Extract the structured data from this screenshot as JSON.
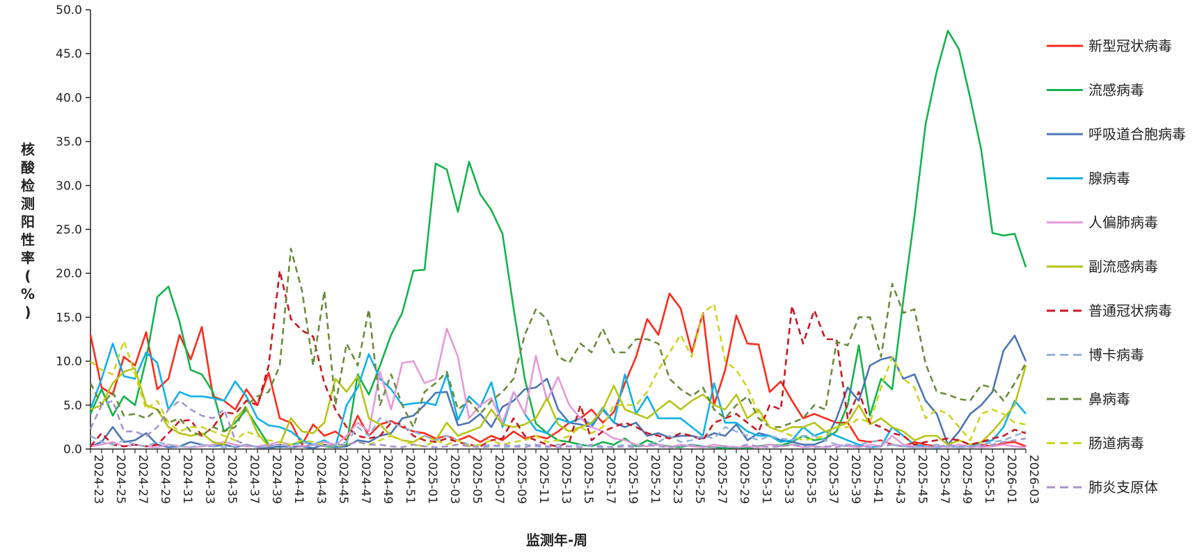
{
  "chart_data": {
    "type": "line",
    "xlabel": "监测年-周",
    "ylabel": "核酸检测阳性率(%)",
    "ylim": [
      0,
      50
    ],
    "yticks": [
      "0.0",
      "5.0",
      "10.0",
      "15.0",
      "20.0",
      "25.0",
      "30.0",
      "35.0",
      "40.0",
      "45.0",
      "50.0"
    ],
    "x": [
      "2024-23",
      "2024-24",
      "2024-25",
      "2024-26",
      "2024-27",
      "2024-28",
      "2024-29",
      "2024-30",
      "2024-31",
      "2024-32",
      "2024-33",
      "2024-34",
      "2024-35",
      "2024-36",
      "2024-37",
      "2024-38",
      "2024-39",
      "2024-40",
      "2024-41",
      "2024-42",
      "2024-43",
      "2024-44",
      "2024-45",
      "2024-46",
      "2024-47",
      "2024-48",
      "2024-49",
      "2024-50",
      "2024-51",
      "2024-52",
      "2025-01",
      "2025-02",
      "2025-03",
      "2025-04",
      "2025-05",
      "2025-06",
      "2025-07",
      "2025-08",
      "2025-09",
      "2025-10",
      "2025-11",
      "2025-12",
      "2025-13",
      "2025-14",
      "2025-15",
      "2025-16",
      "2025-17",
      "2025-18",
      "2025-19",
      "2025-20",
      "2025-21",
      "2025-22",
      "2025-23",
      "2025-24",
      "2025-25",
      "2025-26",
      "2025-27",
      "2025-28",
      "2025-29",
      "2025-30",
      "2025-31",
      "2025-32",
      "2025-33",
      "2025-34",
      "2025-35",
      "2025-36",
      "2025-37",
      "2025-38",
      "2025-39",
      "2025-40",
      "2025-41",
      "2025-42",
      "2025-43",
      "2025-44",
      "2025-45",
      "2025-46",
      "2025-47",
      "2025-48",
      "2025-49",
      "2025-50",
      "2025-51",
      "2025-52",
      "2026-01",
      "2026-02",
      "2026-03"
    ],
    "xtick_labels": [
      "2024-23",
      "2024-25",
      "2024-27",
      "2024-29",
      "2024-31",
      "2024-33",
      "2024-35",
      "2024-37",
      "2024-39",
      "2024-41",
      "2024-43",
      "2024-45",
      "2024-47",
      "2024-49",
      "2024-51",
      "2025-01",
      "2025-03",
      "2025-05",
      "2025-07",
      "2025-09",
      "2025-11",
      "2025-13",
      "2025-15",
      "2025-17",
      "2025-19",
      "2025-21",
      "2025-23",
      "2025-25",
      "2025-27",
      "2025-29",
      "2025-31",
      "2025-33",
      "2025-35",
      "2025-37",
      "2025-39",
      "2025-41",
      "2025-43",
      "2025-45",
      "2025-47",
      "2025-49",
      "2025-51",
      "2026-01",
      "2026-03"
    ],
    "legend_position": "right",
    "grid": false,
    "series": [
      {
        "name": "新型冠状病毒",
        "color": "#ff2a1a",
        "dash": "solid",
        "values": [
          13.0,
          7.0,
          6.2,
          10.5,
          9.5,
          13.3,
          6.8,
          8.0,
          13.0,
          10.2,
          13.9,
          6.0,
          5.5,
          4.5,
          6.8,
          5.0,
          8.7,
          3.5,
          3.0,
          0.5,
          2.8,
          1.5,
          2.0,
          1.0,
          3.8,
          1.5,
          2.8,
          3.2,
          2.5,
          2.0,
          1.8,
          1.2,
          1.5,
          1.0,
          1.5,
          0.8,
          1.5,
          1.0,
          2.0,
          1.2,
          1.5,
          1.2,
          2.0,
          3.0,
          3.5,
          4.5,
          3.0,
          4.2,
          7.5,
          10.5,
          14.8,
          13.0,
          17.7,
          16.0,
          11.0,
          15.5,
          5.0,
          9.0,
          15.2,
          12.0,
          11.9,
          6.5,
          7.7,
          5.5,
          3.5,
          4.0,
          3.5,
          3.0,
          3.0,
          1.0,
          0.8,
          1.0,
          0.5,
          0.3,
          0.8,
          0.5,
          0.3,
          0.3,
          0.2,
          0.3,
          0.5,
          0.3,
          0.7,
          0.8,
          0.3
        ]
      },
      {
        "name": "流感病毒",
        "color": "#13b34c",
        "dash": "solid",
        "values": [
          4.0,
          6.8,
          3.8,
          6.0,
          5.0,
          10.2,
          17.3,
          18.5,
          14.5,
          9.0,
          8.5,
          6.5,
          2.0,
          3.0,
          4.5,
          2.5,
          0.5,
          0.2,
          0.5,
          0.8,
          0.5,
          0.3,
          0.2,
          0.5,
          8.5,
          6.2,
          9.5,
          13.0,
          15.5,
          20.3,
          20.4,
          32.5,
          31.8,
          27.0,
          32.7,
          29.0,
          27.2,
          24.5,
          16.0,
          8.0,
          2.9,
          1.8,
          1.0,
          0.8,
          0.5,
          0.3,
          0.8,
          0.5,
          1.2,
          0.3,
          1.0,
          0.5,
          0.3,
          0.2,
          0.5,
          0.3,
          0.2,
          0.1,
          0.2,
          0.1,
          0.3,
          0.5,
          0.4,
          0.8,
          1.5,
          1.0,
          1.2,
          2.0,
          5.0,
          11.8,
          3.8,
          8.0,
          6.8,
          17.0,
          26.5,
          37.0,
          43.0,
          47.6,
          45.5,
          40.0,
          34.0,
          24.6,
          24.3,
          24.5,
          20.7
        ]
      },
      {
        "name": "呼吸道合胞病毒",
        "color": "#4a74b4",
        "dash": "solid",
        "values": [
          0.3,
          0.8,
          2.5,
          0.8,
          1.0,
          1.8,
          0.5,
          0.2,
          0.3,
          0.8,
          0.5,
          0.3,
          0.5,
          0.2,
          0.5,
          0.2,
          0.1,
          0.3,
          0.2,
          0.3,
          0.1,
          0.5,
          0.2,
          0.3,
          1.0,
          0.8,
          1.5,
          1.8,
          3.5,
          3.8,
          5.0,
          6.4,
          6.5,
          2.7,
          3.0,
          4.0,
          2.5,
          4.8,
          5.5,
          6.8,
          7.0,
          8.0,
          4.5,
          3.0,
          2.8,
          2.5,
          4.5,
          3.0,
          2.5,
          3.0,
          1.5,
          1.8,
          1.3,
          1.5,
          1.5,
          1.2,
          1.8,
          1.5,
          2.8,
          1.0,
          1.8,
          1.5,
          1.0,
          0.8,
          0.5,
          0.5,
          1.0,
          3.5,
          7.0,
          5.5,
          9.5,
          10.2,
          10.5,
          8.0,
          8.5,
          5.5,
          4.0,
          0.5,
          2.0,
          4.0,
          5.0,
          6.5,
          11.2,
          12.9,
          10.0
        ]
      },
      {
        "name": "腺病毒",
        "color": "#0fb1e8",
        "dash": "solid",
        "values": [
          4.5,
          8.0,
          12.0,
          8.3,
          8.0,
          11.0,
          9.8,
          4.5,
          6.5,
          6.0,
          6.0,
          5.8,
          5.5,
          7.7,
          6.0,
          3.5,
          2.7,
          2.5,
          2.0,
          1.0,
          0.5,
          1.0,
          0.3,
          5.0,
          7.0,
          10.8,
          8.0,
          6.8,
          5.0,
          5.2,
          5.3,
          5.0,
          8.5,
          3.3,
          6.0,
          4.8,
          7.6,
          2.5,
          6.5,
          4.0,
          2.2,
          1.8,
          3.5,
          3.0,
          3.5,
          2.8,
          4.7,
          3.0,
          8.5,
          4.0,
          6.0,
          3.5,
          3.5,
          3.5,
          2.5,
          1.5,
          7.5,
          3.0,
          3.0,
          2.0,
          1.5,
          1.5,
          0.8,
          1.0,
          2.5,
          1.5,
          2.0,
          1.5,
          1.0,
          0.5,
          0.2,
          0.3,
          2.5,
          1.5,
          0.5,
          0.3,
          0.2,
          0.3,
          0.2,
          0.3,
          0.8,
          1.0,
          2.5,
          5.5,
          4.0
        ]
      },
      {
        "name": "人偏肺病毒",
        "color": "#e59ad8",
        "dash": "solid",
        "values": [
          0.3,
          0.5,
          0.8,
          0.3,
          0.5,
          0.3,
          0.2,
          0.5,
          0.3,
          0.2,
          0.3,
          0.5,
          0.8,
          0.5,
          0.3,
          0.3,
          0.5,
          0.8,
          0.5,
          0.3,
          0.5,
          0.8,
          0.5,
          1.5,
          3.0,
          2.0,
          8.8,
          4.5,
          9.8,
          10.0,
          7.5,
          8.0,
          13.7,
          10.5,
          3.5,
          5.0,
          5.8,
          3.0,
          6.5,
          4.0,
          10.6,
          5.5,
          8.2,
          5.0,
          3.5,
          2.5,
          2.0,
          1.2,
          1.0,
          0.5,
          0.3,
          0.5,
          0.2,
          0.5,
          0.3,
          0.2,
          0.5,
          0.3,
          0.2,
          0.3,
          0.2,
          0.5,
          0.3,
          0.5,
          0.2,
          0.3,
          0.2,
          0.5,
          0.3,
          0.2,
          0.5,
          0.3,
          1.5,
          0.5,
          0.3,
          0.2,
          0.3,
          0.2,
          0.5,
          0.3,
          0.2,
          0.3,
          0.5,
          0.3,
          0.2
        ]
      },
      {
        "name": "副流感病毒",
        "color": "#b7c416",
        "dash": "solid",
        "values": [
          4.5,
          5.0,
          7.5,
          8.8,
          9.2,
          5.0,
          4.5,
          2.5,
          1.8,
          1.5,
          1.8,
          0.8,
          0.5,
          3.5,
          4.7,
          1.8,
          0.3,
          0.5,
          3.5,
          2.0,
          1.8,
          3.0,
          8.0,
          6.5,
          8.3,
          3.5,
          2.8,
          1.5,
          1.0,
          0.8,
          1.5,
          1.0,
          3.0,
          1.5,
          2.0,
          2.5,
          4.5,
          2.8,
          2.5,
          2.8,
          3.5,
          5.8,
          2.8,
          2.0,
          2.5,
          3.0,
          4.5,
          7.2,
          4.5,
          4.0,
          3.5,
          4.5,
          5.5,
          4.5,
          5.5,
          6.2,
          5.0,
          4.5,
          6.2,
          3.5,
          4.5,
          2.5,
          2.0,
          2.5,
          2.5,
          3.0,
          2.0,
          2.5,
          3.0,
          5.0,
          2.8,
          3.5,
          2.5,
          2.0,
          1.0,
          1.5,
          1.5,
          0.5,
          1.0,
          0.5,
          0.8,
          2.0,
          3.5,
          5.0,
          9.5
        ]
      },
      {
        "name": "普通冠状病毒",
        "color": "#c81822",
        "dash": "dashed",
        "values": [
          0.3,
          1.8,
          0.5,
          0.3,
          0.5,
          0.3,
          0.5,
          1.8,
          3.2,
          3.3,
          1.5,
          2.5,
          4.2,
          4.0,
          5.5,
          5.0,
          9.5,
          20.3,
          14.8,
          13.5,
          12.8,
          7.5,
          4.5,
          2.5,
          1.5,
          1.2,
          1.5,
          3.0,
          2.8,
          1.5,
          1.0,
          0.8,
          1.2,
          0.8,
          0.5,
          0.3,
          1.0,
          1.2,
          3.5,
          1.5,
          1.0,
          0.5,
          0.3,
          0.8,
          5.0,
          1.0,
          2.0,
          2.5,
          3.0,
          2.5,
          1.8,
          1.5,
          1.2,
          1.8,
          1.5,
          1.0,
          3.0,
          3.5,
          4.0,
          3.0,
          2.0,
          5.0,
          4.5,
          16.3,
          12.0,
          15.8,
          12.5,
          12.5,
          3.5,
          6.5,
          3.0,
          2.5,
          1.8,
          1.5,
          0.5,
          0.8,
          1.0,
          1.2,
          1.0,
          0.5,
          0.8,
          1.2,
          1.5,
          2.2,
          1.8
        ]
      },
      {
        "name": "博卡病毒",
        "color": "#92b4dc",
        "dash": "dashed",
        "values": [
          1.5,
          0.8,
          0.5,
          1.0,
          0.5,
          0.3,
          0.8,
          0.5,
          0.3,
          0.2,
          0.5,
          0.3,
          0.2,
          0.3,
          0.5,
          0.2,
          0.3,
          0.5,
          0.3,
          0.8,
          0.5,
          0.3,
          0.5,
          0.8,
          2.5,
          1.5,
          3.5,
          3.0,
          2.5,
          2.0,
          1.5,
          1.0,
          1.5,
          1.0,
          0.5,
          0.3,
          0.5,
          0.2,
          0.3,
          0.5,
          0.3,
          0.2,
          0.5,
          0.3,
          0.5,
          0.3,
          0.2,
          0.3,
          0.5,
          0.3,
          0.5,
          0.8,
          1.5,
          0.8,
          1.0,
          1.5,
          1.2,
          2.5,
          2.0,
          1.5,
          1.0,
          1.5,
          1.2,
          1.0,
          1.5,
          1.5,
          1.0,
          0.5,
          0.3,
          0.5,
          0.8,
          1.0,
          0.5,
          0.3,
          0.2,
          0.3,
          0.5,
          0.3,
          0.2,
          0.3,
          0.5,
          0.8,
          1.0,
          1.5,
          2.0
        ]
      },
      {
        "name": "鼻病毒",
        "color": "#6b8b3a",
        "dash": "dashed",
        "values": [
          7.5,
          5.0,
          6.5,
          3.8,
          4.0,
          3.5,
          4.5,
          3.0,
          3.5,
          2.0,
          1.5,
          2.5,
          2.0,
          2.5,
          5.0,
          6.0,
          6.5,
          9.5,
          22.8,
          18.0,
          9.5,
          18.0,
          5.0,
          12.0,
          9.5,
          15.9,
          5.0,
          8.5,
          5.0,
          2.5,
          6.5,
          7.5,
          8.8,
          4.5,
          5.5,
          4.0,
          5.5,
          6.5,
          8.0,
          13.0,
          15.9,
          14.8,
          10.5,
          9.8,
          12.0,
          11.0,
          13.7,
          11.0,
          11.0,
          12.5,
          12.5,
          12.0,
          8.0,
          6.8,
          6.0,
          7.0,
          4.5,
          3.5,
          5.0,
          6.0,
          3.5,
          2.5,
          2.5,
          3.0,
          3.5,
          5.0,
          4.5,
          12.2,
          11.8,
          15.0,
          15.0,
          10.5,
          18.8,
          15.5,
          15.9,
          9.7,
          6.5,
          6.2,
          5.7,
          5.5,
          7.3,
          7.0,
          5.5,
          7.5,
          9.8
        ]
      },
      {
        "name": "肠道病毒",
        "color": "#cbd521",
        "dash": "dashed",
        "values": [
          10.0,
          9.0,
          8.5,
          12.3,
          8.5,
          4.5,
          5.5,
          3.0,
          2.0,
          2.5,
          2.5,
          2.0,
          1.5,
          1.0,
          2.0,
          1.5,
          1.0,
          0.8,
          0.5,
          1.0,
          0.8,
          0.5,
          0.3,
          0.5,
          0.8,
          0.5,
          1.0,
          1.5,
          1.0,
          0.5,
          0.3,
          1.0,
          0.5,
          1.0,
          0.3,
          0.5,
          1.0,
          0.5,
          0.8,
          1.0,
          1.5,
          0.8,
          1.0,
          1.5,
          2.5,
          1.8,
          2.5,
          5.0,
          5.0,
          5.0,
          6.5,
          9.0,
          11.0,
          13.0,
          10.5,
          15.5,
          16.5,
          10.0,
          9.0,
          7.0,
          4.0,
          2.5,
          2.0,
          1.5,
          1.0,
          1.2,
          1.5,
          2.5,
          2.5,
          3.5,
          3.0,
          7.0,
          10.5,
          8.0,
          7.0,
          3.5,
          4.5,
          4.0,
          2.5,
          1.0,
          4.0,
          4.5,
          4.0,
          3.0,
          2.8
        ]
      },
      {
        "name": "肺炎支原体",
        "color": "#a894ce",
        "dash": "dashed",
        "values": [
          2.3,
          5.0,
          5.5,
          2.0,
          2.0,
          1.5,
          2.5,
          4.5,
          5.5,
          4.5,
          3.8,
          3.5,
          4.5,
          1.0,
          0.5,
          0.2,
          0.3,
          0.5,
          0.2,
          0.3,
          0.5,
          0.3,
          0.5,
          0.5,
          0.8,
          0.5,
          0.5,
          0.3,
          0.2,
          0.5,
          0.3,
          0.2,
          0.3,
          0.5,
          0.3,
          0.2,
          0.3,
          0.5,
          0.3,
          0.2,
          0.5,
          0.3,
          0.2,
          0.3,
          0.2,
          0.5,
          0.3,
          0.2,
          0.3,
          0.2,
          0.5,
          0.3,
          0.2,
          0.3,
          0.5,
          0.3,
          0.2,
          0.3,
          0.2,
          0.5,
          0.3,
          0.2,
          0.3,
          0.5,
          0.3,
          0.2,
          0.3,
          0.2,
          0.5,
          0.3,
          0.2,
          0.3,
          0.5,
          0.3,
          0.2,
          0.3,
          0.2,
          0.5,
          0.3,
          0.2,
          0.3,
          0.5,
          0.8,
          1.0,
          1.2
        ]
      }
    ]
  }
}
